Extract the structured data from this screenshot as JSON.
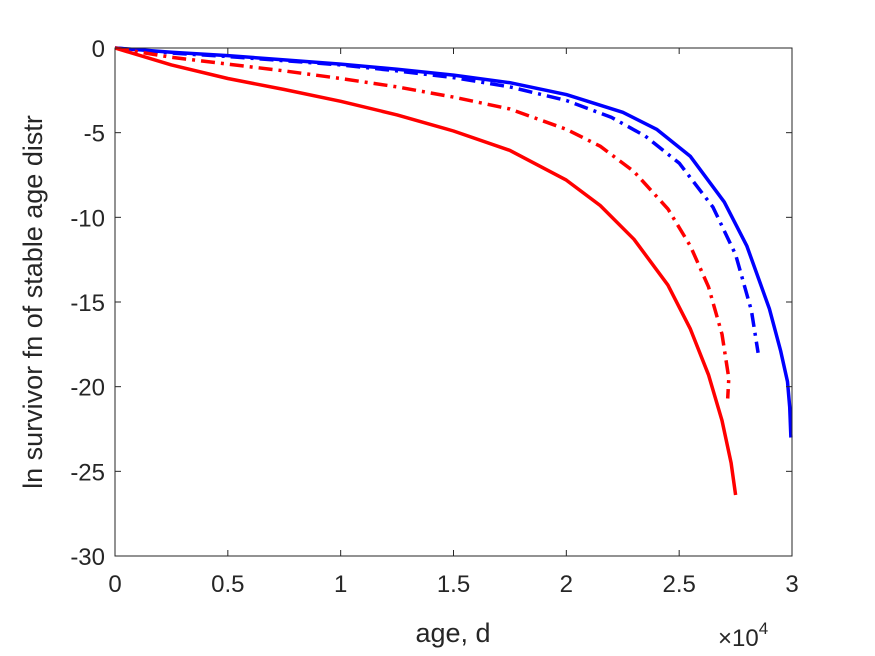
{
  "chart_data": {
    "type": "line",
    "title": "",
    "xlabel": "age, d",
    "ylabel": "ln survivor fn of stable age distr",
    "x_exponent_label": "×10",
    "x_exponent_power": "4",
    "xlim": [
      0,
      30000
    ],
    "ylim": [
      -30,
      0
    ],
    "xticks": [
      0,
      5000,
      10000,
      15000,
      20000,
      25000,
      30000
    ],
    "xtick_labels": [
      "0",
      "0.5",
      "1",
      "1.5",
      "2",
      "2.5",
      "3"
    ],
    "yticks": [
      0,
      -5,
      -10,
      -15,
      -20,
      -25,
      -30
    ],
    "ytick_labels": [
      "0",
      "-5",
      "-10",
      "-15",
      "-20",
      "-25",
      "-30"
    ],
    "grid": false,
    "series": [
      {
        "color": "#0000ff",
        "style": "solid",
        "x": [
          0,
          2500,
          5000,
          7500,
          10000,
          12500,
          15000,
          17500,
          20000,
          22500,
          24000,
          25500,
          27000,
          28000,
          29000,
          29500,
          29800,
          29900,
          29950
        ],
        "y": [
          0,
          -0.25,
          -0.45,
          -0.7,
          -0.95,
          -1.25,
          -1.6,
          -2.05,
          -2.75,
          -3.8,
          -4.8,
          -6.4,
          -9.1,
          -11.7,
          -15.4,
          -17.9,
          -19.7,
          -21.2,
          -23.0
        ]
      },
      {
        "color": "#0000ff",
        "style": "dashdot",
        "x": [
          0,
          2500,
          5000,
          7500,
          10000,
          12500,
          15000,
          17500,
          20000,
          22000,
          23500,
          25000,
          26500,
          27500,
          28200,
          28500
        ],
        "y": [
          0,
          -0.3,
          -0.5,
          -0.75,
          -1.0,
          -1.35,
          -1.75,
          -2.3,
          -3.1,
          -4.1,
          -5.2,
          -6.8,
          -9.4,
          -12.2,
          -15.5,
          -18.0
        ]
      },
      {
        "color": "#ff0000",
        "style": "dashdot",
        "x": [
          0,
          2500,
          5000,
          7500,
          10000,
          12500,
          15000,
          17500,
          20000,
          21500,
          23000,
          24500,
          25500,
          26300,
          26900,
          27200,
          27150
        ],
        "y": [
          0,
          -0.55,
          -0.95,
          -1.35,
          -1.8,
          -2.3,
          -2.9,
          -3.6,
          -4.8,
          -5.8,
          -7.3,
          -9.5,
          -11.7,
          -14.1,
          -16.9,
          -19.5,
          -20.7
        ]
      },
      {
        "color": "#ff0000",
        "style": "solid",
        "x": [
          0,
          2500,
          5000,
          7500,
          10000,
          12500,
          15000,
          17500,
          20000,
          21500,
          23000,
          24500,
          25500,
          26300,
          26900,
          27300,
          27500
        ],
        "y": [
          0,
          -1.0,
          -1.8,
          -2.45,
          -3.15,
          -3.95,
          -4.9,
          -6.05,
          -7.8,
          -9.3,
          -11.3,
          -14.0,
          -16.6,
          -19.3,
          -22.0,
          -24.5,
          -26.4
        ]
      }
    ]
  }
}
